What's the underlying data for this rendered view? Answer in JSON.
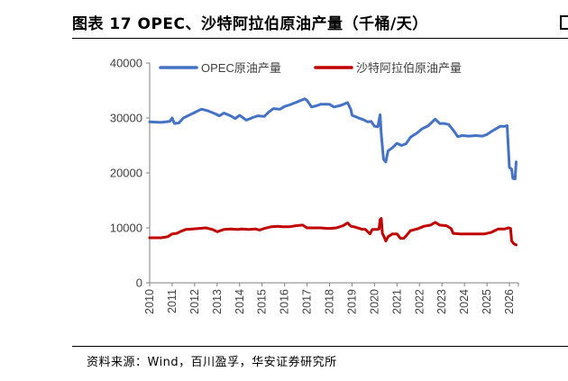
{
  "figure": {
    "title": "图表 17 OPEC、沙特阿拉伯原油产量（千桶/天）",
    "source": "资料来源：Wind，百川盈孚，华安证券研究所"
  },
  "colors": {
    "opec": "#4472C4",
    "saudi": "#C00000",
    "axis": "#808080"
  },
  "chart_data": {
    "type": "line",
    "title": "",
    "xlabel": "",
    "ylabel": "",
    "ylim": [
      0,
      40000
    ],
    "yticks": [
      0,
      10000,
      20000,
      30000,
      40000
    ],
    "xlim": [
      2010.0,
      2026.4
    ],
    "xticks": [
      "2010",
      "2011",
      "2012",
      "2013",
      "2014",
      "2015",
      "2016",
      "2017",
      "2018",
      "2019",
      "2020",
      "2021",
      "2022",
      "2023",
      "2024",
      "2025",
      "2026"
    ],
    "grid": false,
    "legend": "top",
    "series": [
      {
        "name": "OPEC原油产量",
        "color": "#4472C4",
        "points": [
          [
            2010.0,
            29300
          ],
          [
            2010.5,
            29200
          ],
          [
            2010.9,
            29400
          ],
          [
            2011.0,
            30000
          ],
          [
            2011.1,
            29000
          ],
          [
            2011.3,
            29100
          ],
          [
            2011.5,
            30000
          ],
          [
            2011.8,
            30600
          ],
          [
            2012.0,
            31000
          ],
          [
            2012.3,
            31600
          ],
          [
            2012.6,
            31300
          ],
          [
            2012.9,
            30800
          ],
          [
            2013.1,
            30400
          ],
          [
            2013.3,
            30900
          ],
          [
            2013.6,
            30400
          ],
          [
            2013.8,
            29900
          ],
          [
            2014.0,
            30500
          ],
          [
            2014.3,
            29600
          ],
          [
            2014.6,
            30100
          ],
          [
            2014.8,
            30400
          ],
          [
            2015.1,
            30300
          ],
          [
            2015.3,
            31100
          ],
          [
            2015.5,
            31700
          ],
          [
            2015.8,
            31600
          ],
          [
            2016.0,
            32100
          ],
          [
            2016.3,
            32500
          ],
          [
            2016.6,
            33000
          ],
          [
            2016.9,
            33500
          ],
          [
            2017.0,
            33200
          ],
          [
            2017.2,
            32000
          ],
          [
            2017.4,
            32200
          ],
          [
            2017.6,
            32500
          ],
          [
            2017.9,
            32500
          ],
          [
            2018.0,
            32500
          ],
          [
            2018.2,
            32000
          ],
          [
            2018.5,
            32300
          ],
          [
            2018.8,
            32800
          ],
          [
            2018.95,
            31500
          ],
          [
            2019.0,
            30500
          ],
          [
            2019.3,
            30000
          ],
          [
            2019.5,
            29700
          ],
          [
            2019.7,
            29300
          ],
          [
            2019.85,
            29400
          ],
          [
            2020.0,
            28500
          ],
          [
            2020.15,
            28400
          ],
          [
            2020.25,
            30600
          ],
          [
            2020.3,
            27000
          ],
          [
            2020.4,
            22500
          ],
          [
            2020.5,
            22000
          ],
          [
            2020.6,
            24000
          ],
          [
            2020.8,
            24600
          ],
          [
            2021.0,
            25400
          ],
          [
            2021.2,
            25000
          ],
          [
            2021.4,
            25300
          ],
          [
            2021.6,
            26500
          ],
          [
            2021.9,
            27300
          ],
          [
            2022.1,
            28000
          ],
          [
            2022.4,
            28600
          ],
          [
            2022.7,
            29800
          ],
          [
            2022.9,
            29000
          ],
          [
            2023.1,
            29000
          ],
          [
            2023.3,
            28800
          ],
          [
            2023.5,
            27800
          ],
          [
            2023.7,
            26600
          ],
          [
            2023.9,
            26800
          ],
          [
            2024.2,
            26700
          ],
          [
            2024.5,
            26800
          ],
          [
            2024.8,
            26700
          ],
          [
            2025.0,
            27000
          ],
          [
            2025.3,
            27800
          ],
          [
            2025.6,
            28500
          ],
          [
            2025.8,
            28500
          ],
          [
            2025.9,
            28600
          ],
          [
            2026.0,
            21000
          ],
          [
            2026.1,
            20700
          ],
          [
            2026.15,
            19000
          ],
          [
            2026.25,
            18900
          ],
          [
            2026.3,
            22000
          ]
        ]
      },
      {
        "name": "沙特阿拉伯原油产量",
        "color": "#C00000",
        "points": [
          [
            2010.0,
            8200
          ],
          [
            2010.5,
            8200
          ],
          [
            2010.8,
            8400
          ],
          [
            2011.0,
            8900
          ],
          [
            2011.2,
            9000
          ],
          [
            2011.4,
            9400
          ],
          [
            2011.6,
            9700
          ],
          [
            2011.9,
            9800
          ],
          [
            2012.2,
            9900
          ],
          [
            2012.5,
            10000
          ],
          [
            2012.8,
            9700
          ],
          [
            2013.0,
            9300
          ],
          [
            2013.3,
            9700
          ],
          [
            2013.6,
            9800
          ],
          [
            2013.9,
            9700
          ],
          [
            2014.1,
            9800
          ],
          [
            2014.4,
            9700
          ],
          [
            2014.7,
            9800
          ],
          [
            2014.9,
            9600
          ],
          [
            2015.1,
            9900
          ],
          [
            2015.4,
            10200
          ],
          [
            2015.7,
            10300
          ],
          [
            2015.9,
            10200
          ],
          [
            2016.2,
            10200
          ],
          [
            2016.5,
            10400
          ],
          [
            2016.8,
            10500
          ],
          [
            2017.0,
            10000
          ],
          [
            2017.3,
            10000
          ],
          [
            2017.6,
            10000
          ],
          [
            2017.9,
            9900
          ],
          [
            2018.0,
            9900
          ],
          [
            2018.3,
            10000
          ],
          [
            2018.6,
            10400
          ],
          [
            2018.8,
            10900
          ],
          [
            2018.95,
            10300
          ],
          [
            2019.1,
            10200
          ],
          [
            2019.4,
            9800
          ],
          [
            2019.6,
            9700
          ],
          [
            2019.8,
            8900
          ],
          [
            2019.9,
            9700
          ],
          [
            2020.1,
            9700
          ],
          [
            2020.2,
            9800
          ],
          [
            2020.25,
            11500
          ],
          [
            2020.3,
            11700
          ],
          [
            2020.35,
            9000
          ],
          [
            2020.4,
            8600
          ],
          [
            2020.5,
            7600
          ],
          [
            2020.6,
            8400
          ],
          [
            2020.8,
            8900
          ],
          [
            2021.0,
            8900
          ],
          [
            2021.15,
            8100
          ],
          [
            2021.3,
            8100
          ],
          [
            2021.4,
            8500
          ],
          [
            2021.6,
            9500
          ],
          [
            2021.9,
            9800
          ],
          [
            2022.2,
            10300
          ],
          [
            2022.5,
            10500
          ],
          [
            2022.7,
            11000
          ],
          [
            2022.9,
            10500
          ],
          [
            2023.2,
            10400
          ],
          [
            2023.4,
            9900
          ],
          [
            2023.5,
            9000
          ],
          [
            2023.8,
            8900
          ],
          [
            2024.1,
            8900
          ],
          [
            2024.4,
            8900
          ],
          [
            2024.7,
            8900
          ],
          [
            2024.9,
            8900
          ],
          [
            2025.2,
            9200
          ],
          [
            2025.5,
            9800
          ],
          [
            2025.8,
            9800
          ],
          [
            2025.95,
            10000
          ],
          [
            2026.05,
            9900
          ],
          [
            2026.1,
            7600
          ],
          [
            2026.2,
            7100
          ],
          [
            2026.3,
            6900
          ]
        ]
      }
    ]
  }
}
